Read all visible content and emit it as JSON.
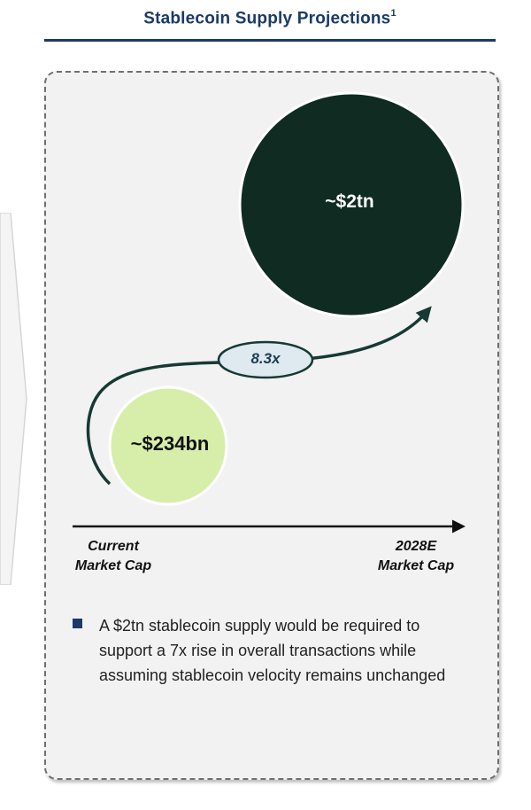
{
  "header": {
    "title": "Stablecoin Supply Projections",
    "footnote_marker": "1"
  },
  "diagram": {
    "current": {
      "value_label": "~$234bn",
      "axis_label_line1": "Current",
      "axis_label_line2": "Market Cap",
      "color": "#d7eeaa"
    },
    "projected": {
      "value_label": "~$2tn",
      "axis_label_line1": "2028E",
      "axis_label_line2": "Market Cap",
      "color": "#0f2b22"
    },
    "multiplier_label": "8.3x",
    "multiplier_fill": "#dfe9f0",
    "arrow_color": "#163a33"
  },
  "bullets": [
    {
      "text": "A $2tn stablecoin supply would be required to support a 7x rise in overall transactions while assuming stablecoin velocity remains unchanged"
    }
  ],
  "colors": {
    "title": "#1b3a68",
    "panel_background": "#f2f2f2",
    "panel_border": "#6f6f6f"
  }
}
